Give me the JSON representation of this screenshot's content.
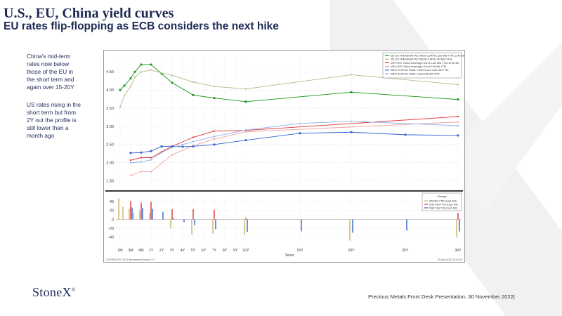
{
  "slide": {
    "title": "U.S., EU, China yield curves",
    "subtitle": "EU rates flip-flopping as ECB considers the next hike",
    "note1": "China's mid-term rates now below those of the EU in the short term and again over 15-20Y",
    "note2": "US rates rising in the short term but from 2Y out the profile is still lower than a month ago",
    "logo": "StoneX",
    "footer": "Precious Metals Front Desk Presentation, 30 November 2022|"
  },
  "chart_meta": {
    "copyright": "COPYRIGHT© 2022 Bloomberg Finance L.P.",
    "date": "29-Nov-2022 12:40:26",
    "change_legend_title": "Change"
  },
  "chart_data": [
    {
      "type": "line",
      "xlabel": "",
      "ylim": [
        1.3,
        4.95
      ],
      "yticks": [
        "1.50",
        "2.00",
        "2.50",
        "3.00",
        "3.50",
        "4.00",
        "4.50"
      ],
      "legend_position": "top-right",
      "series": [
        {
          "name": "I25 US TREASURY ACTIVES CURVE Last Mid YTM 12:40:26",
          "color": "#149414",
          "marker": "square",
          "x": [
            "1M",
            "2M",
            "3M",
            "4M",
            "6M",
            "1Y",
            "2Y",
            "3Y",
            "5Y",
            "7Y",
            "10Y",
            "20Y",
            "30Y"
          ],
          "values": [
            4.0,
            4.12,
            4.32,
            4.5,
            4.7,
            4.7,
            4.45,
            4.2,
            3.86,
            3.78,
            3.68,
            3.94,
            3.74
          ]
        },
        {
          "name": "I25 US TREASURY ACTIVES CURVE 1M Mid YTM",
          "color": "#b8b88a",
          "marker": "dot",
          "x": [
            "1M",
            "2M",
            "3M",
            "4M",
            "6M",
            "1Y",
            "2Y",
            "3Y",
            "5Y",
            "7Y",
            "10Y",
            "20Y",
            "30Y"
          ],
          "values": [
            3.53,
            3.85,
            4.1,
            4.35,
            4.5,
            4.55,
            4.47,
            4.4,
            4.22,
            4.1,
            4.03,
            4.42,
            4.15
          ]
        },
        {
          "name": "I299 CNY China Sovereign Curve Last Mid YTM 12:40:26",
          "color": "#e03030",
          "marker": "dot",
          "x": [
            "3M",
            "6M",
            "1Y",
            "2Y",
            "3Y",
            "5Y",
            "7Y",
            "10Y",
            "30Y"
          ],
          "values": [
            2.07,
            2.14,
            2.14,
            2.3,
            2.45,
            2.7,
            2.87,
            2.89,
            3.27
          ]
        },
        {
          "name": "I299 CNY China Sovereign Curve 1M Mid YTM",
          "color": "#f0a0a0",
          "marker": "dot",
          "x": [
            "3M",
            "6M",
            "1Y",
            "3Y",
            "5Y",
            "7Y",
            "10Y",
            "30Y"
          ],
          "values": [
            1.65,
            1.76,
            1.75,
            2.22,
            2.47,
            2.65,
            2.85,
            3.12
          ]
        },
        {
          "name": "I0847 EUR EU EMAL YSeB Curve Last Mid YTM",
          "color": "#3060d0",
          "marker": "square",
          "x": [
            "3M",
            "6M",
            "1Y",
            "2Y",
            "3Y",
            "4Y",
            "5Y",
            "7Y",
            "10Y",
            "15Y",
            "20Y",
            "25Y",
            "30Y"
          ],
          "values": [
            2.27,
            2.28,
            2.32,
            2.45,
            2.45,
            2.44,
            2.45,
            2.5,
            2.62,
            2.81,
            2.84,
            2.77,
            2.75
          ]
        },
        {
          "name": "I0847 EUR EU EMAL YSeB 1M Mid YTM",
          "color": "#90b0e8",
          "marker": "dot",
          "x": [
            "3M",
            "6M",
            "1Y",
            "2Y",
            "3Y",
            "4Y",
            "5Y",
            "7Y",
            "10Y",
            "15Y",
            "20Y",
            "30Y"
          ],
          "values": [
            2.0,
            2.02,
            2.08,
            2.28,
            2.42,
            2.5,
            2.58,
            2.72,
            2.9,
            3.08,
            3.14,
            3.02
          ]
        }
      ]
    },
    {
      "type": "bar",
      "xlabel": "Tenor",
      "ylim": [
        -58,
        58
      ],
      "yticks": [
        "40",
        "20",
        "0",
        "-20",
        "-40"
      ],
      "categories": [
        "1M",
        "3M",
        "6M",
        "1Y",
        "2Y",
        "3Y",
        "4Y",
        "5Y",
        "6Y",
        "7Y",
        "8Y",
        "9Y",
        "10Y",
        "15Y",
        "20Y",
        "25Y",
        "30Y"
      ],
      "legend_position": "top-right",
      "series": [
        {
          "name": "I25 Mid YTM (Last-1M)",
          "color": "#c8b460",
          "x": [
            "1M",
            "2M",
            "3M",
            "4M",
            "6M",
            "1Y",
            "3Y",
            "5Y",
            "7Y",
            "10Y",
            "20Y",
            "30Y"
          ],
          "values": [
            48,
            28,
            24,
            15,
            20,
            15,
            -20,
            -34,
            -32,
            -35,
            -48,
            -41
          ]
        },
        {
          "name": "I299 Mid YTM (Last-1M)",
          "color": "#e03030",
          "x": [
            "3M",
            "6M",
            "1Y",
            "3Y",
            "5Y",
            "7Y",
            "10Y",
            "30Y"
          ],
          "values": [
            42,
            38,
            40,
            23,
            23,
            22,
            4,
            15
          ]
        },
        {
          "name": "I0847 Bid Yld (Last-1M)",
          "color": "#3060d0",
          "x": [
            "3M",
            "6M",
            "1Y",
            "2Y",
            "3Y",
            "4Y",
            "5Y",
            "7Y",
            "10Y",
            "15Y",
            "20Y",
            "25Y",
            "30Y"
          ],
          "values": [
            27,
            26,
            24,
            17,
            3,
            -6,
            -13,
            -22,
            -28,
            -27,
            -30,
            -25,
            -27
          ]
        }
      ]
    }
  ]
}
